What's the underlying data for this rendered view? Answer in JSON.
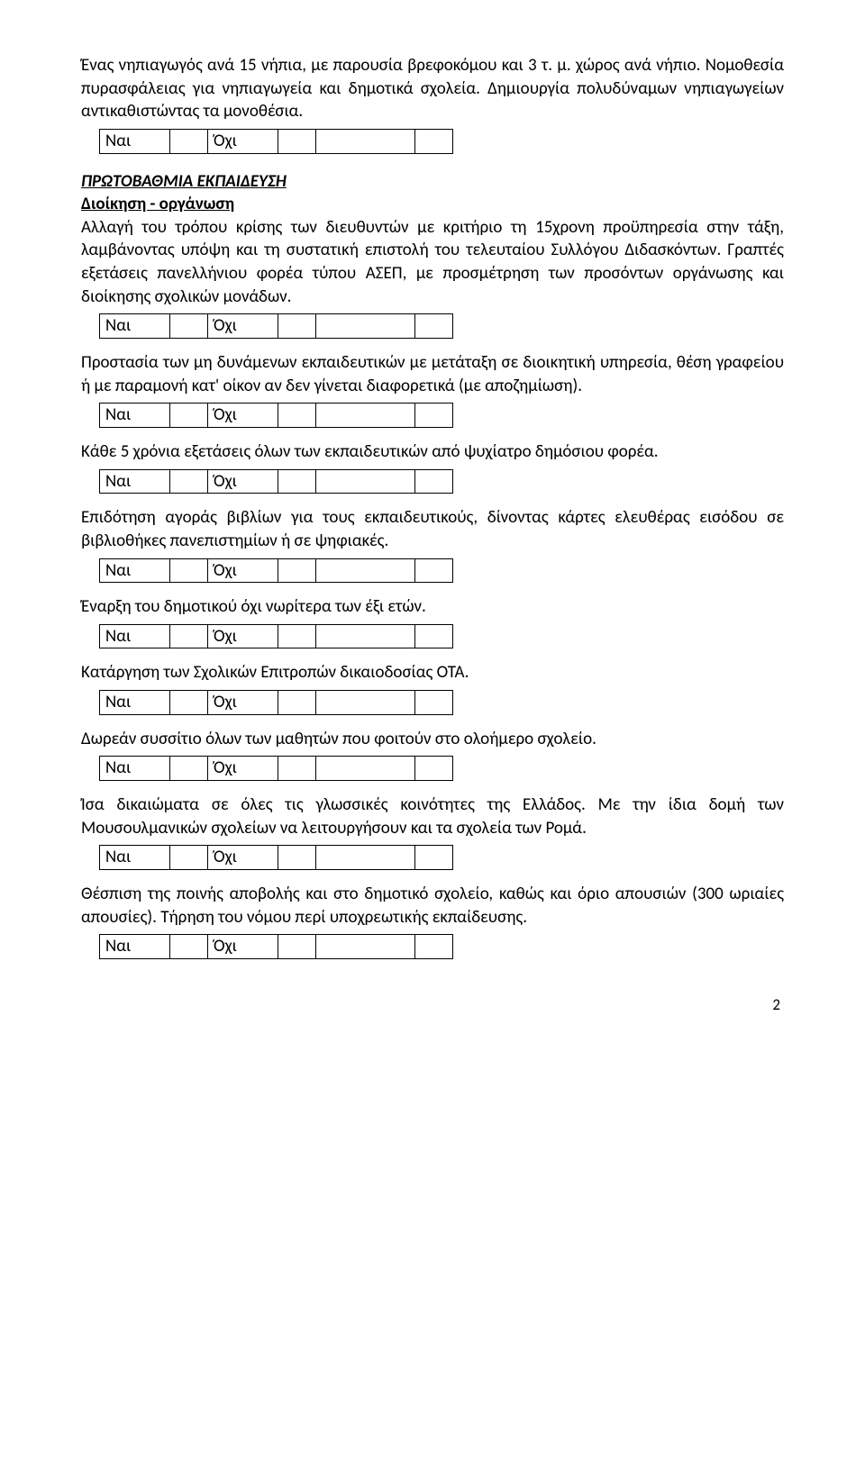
{
  "labels": {
    "yes": "Ναι",
    "no": "Όχι"
  },
  "intro_para": "Ένας νηπιαγωγός ανά 15 νήπια, με παρουσία βρεφοκόμου και 3 τ. μ. χώρος ανά νήπιο. Νομοθεσία πυρασφάλειας για νηπιαγωγεία και δημοτικά σχολεία. Δημιουργία πολυδύναμων νηπιαγωγείων αντικαθιστώντας τα μονοθέσια.",
  "section_title": "ΠΡΩΤΟΒΑΘΜΙΑ ΕΚΠΑΙΔΕΥΣΗ",
  "subsection_title": "Διοίκηση - οργάνωση",
  "q1": "Αλλαγή του τρόπου κρίσης των διευθυντών με κριτήριο τη 15χρονη προϋπηρεσία στην τάξη, λαμβάνοντας υπόψη και τη συστατική επιστολή του τελευταίου Συλλόγου Διδασκόντων. Γραπτές εξετάσεις πανελλήνιου φορέα τύπου ΑΣΕΠ, με προσμέτρηση των προσόντων οργάνωσης και διοίκησης σχολικών μονάδων.",
  "q2": "Προστασία των μη δυνάμενων εκπαιδευτικών με μετάταξη σε διοικητική υπηρεσία, θέση γραφείου ή με παραμονή κατ' οίκον αν δεν γίνεται διαφορετικά (με αποζημίωση).",
  "q3": "Κάθε 5 χρόνια εξετάσεις όλων των εκπαιδευτικών από ψυχίατρο δημόσιου φορέα.",
  "q4": "Επιδότηση αγοράς βιβλίων για τους εκπαιδευτικούς, δίνοντας κάρτες ελευθέρας εισόδου σε βιβλιοθήκες πανεπιστημίων ή σε ψηφιακές.",
  "q5": "Έναρξη του δημοτικού όχι νωρίτερα των έξι ετών.",
  "q6": "Κατάργηση των Σχολικών Επιτροπών δικαιοδοσίας ΟΤΑ.",
  "q7": "Δωρεάν συσσίτιο όλων των μαθητών που φοιτούν στο ολοήμερο σχολείο.",
  "q8": "Ίσα δικαιώματα σε όλες τις γλωσσικές κοινότητες της Ελλάδος. Με την ίδια δομή των Μουσουλμανικών σχολείων να λειτουργήσουν και τα σχολεία των Ρομά.",
  "q9": "Θέσπιση της ποινής αποβολής και στο δημοτικό σχολείο, καθώς και όριο απουσιών (300 ωριαίες απουσίες). Τήρηση του νόμου περί υποχρεωτικής εκπαίδευσης.",
  "page_number": "2"
}
